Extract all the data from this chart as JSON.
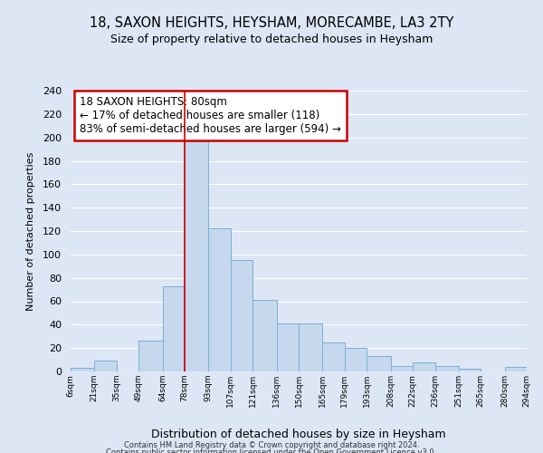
{
  "title": "18, SAXON HEIGHTS, HEYSHAM, MORECAMBE, LA3 2TY",
  "subtitle": "Size of property relative to detached houses in Heysham",
  "xlabel": "Distribution of detached houses by size in Heysham",
  "ylabel": "Number of detached properties",
  "bar_color": "#c5d8ed",
  "bar_edge_color": "#7bafd4",
  "background_color": "#dce6f5",
  "plot_bg_color": "#dce6f5",
  "grid_color": "#ffffff",
  "bins": [
    6,
    21,
    35,
    49,
    64,
    78,
    93,
    107,
    121,
    136,
    150,
    165,
    179,
    193,
    208,
    222,
    236,
    251,
    265,
    280,
    294
  ],
  "bin_labels": [
    "6sqm",
    "21sqm",
    "35sqm",
    "49sqm",
    "64sqm",
    "78sqm",
    "93sqm",
    "107sqm",
    "121sqm",
    "136sqm",
    "150sqm",
    "165sqm",
    "179sqm",
    "193sqm",
    "208sqm",
    "222sqm",
    "236sqm",
    "251sqm",
    "265sqm",
    "280sqm",
    "294sqm"
  ],
  "values": [
    3,
    9,
    0,
    26,
    73,
    198,
    122,
    95,
    61,
    41,
    41,
    25,
    20,
    13,
    5,
    8,
    5,
    2,
    0,
    4
  ],
  "ylim": [
    0,
    240
  ],
  "yticks": [
    0,
    20,
    40,
    60,
    80,
    100,
    120,
    140,
    160,
    180,
    200,
    220,
    240
  ],
  "vline_x": 78,
  "vline_color": "#cc0000",
  "annotation_title": "18 SAXON HEIGHTS: 80sqm",
  "annotation_line1": "← 17% of detached houses are smaller (118)",
  "annotation_line2": "83% of semi-detached houses are larger (594) →",
  "annotation_box_color": "#ffffff",
  "annotation_box_edge": "#cc0000",
  "footer1": "Contains HM Land Registry data © Crown copyright and database right 2024.",
  "footer2": "Contains public sector information licensed under the Open Government Licence v3.0."
}
